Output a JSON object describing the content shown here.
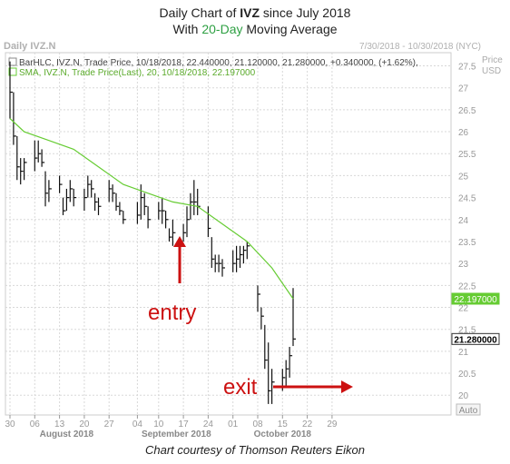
{
  "title": {
    "line1_prefix": "Daily Chart of ",
    "line1_ticker": "IVZ",
    "line1_suffix": " since July 2018",
    "line2_prefix": "With ",
    "line2_highlight": "20-Day",
    "line2_suffix": " Moving Average"
  },
  "header": {
    "chart_name": "Daily IVZ.N",
    "date_range": "7/30/2018 - 10/30/2018 (NYC)",
    "legend_bar": "BarHLC, IVZ.N, Trade Price, 10/18/2018, 22.440000, 21.120000, 21.280000, +0.340000, (+1.62%),",
    "legend_sma": "SMA, IVZ.N, Trade Price(Last), 20, 10/18/2018, 22.197000",
    "price_label": "Price",
    "currency_label": "USD"
  },
  "annotations": {
    "entry": "entry",
    "exit": "exit"
  },
  "auto_label": "Auto",
  "credit": "Chart courtesy of Thomson Reuters Eikon",
  "colors": {
    "bars": "#111111",
    "sma": "#66cc33",
    "arrows": "#cc1111",
    "grid": "#d8d8d8",
    "axis_text": "#999999"
  },
  "chart_data": {
    "type": "line",
    "title": "Daily Chart of IVZ since July 2018",
    "subtitle": "With 20-Day Moving Average",
    "ylabel": "Price USD",
    "ylim": [
      19.55,
      27.8
    ],
    "y_ticks": [
      20,
      20.5,
      21,
      21.5,
      22,
      22.5,
      23,
      23.5,
      24,
      24.5,
      25,
      25.5,
      26,
      26.5,
      27,
      27.5
    ],
    "x_ticks": [
      "30",
      "06",
      "13",
      "20",
      "27",
      "04",
      "10",
      "17",
      "24",
      "01",
      "08",
      "15",
      "22",
      "29"
    ],
    "x_tick_dates": [
      "2018-07-30",
      "2018-08-06",
      "2018-08-13",
      "2018-08-20",
      "2018-08-27",
      "2018-09-04",
      "2018-09-10",
      "2018-09-17",
      "2018-09-24",
      "2018-10-01",
      "2018-10-08",
      "2018-10-15",
      "2018-10-22",
      "2018-10-29"
    ],
    "month_labels": [
      "August 2018",
      "September 2018",
      "October 2018"
    ],
    "grid": true,
    "series": [
      {
        "name": "BarHLC, IVZ.N",
        "kind": "hlc",
        "bars": [
          {
            "date": "2018-07-30",
            "high": 27.6,
            "low": 26.3,
            "close": 26.9
          },
          {
            "date": "2018-07-31",
            "high": 26.9,
            "low": 25.7,
            "close": 25.9
          },
          {
            "date": "2018-08-01",
            "high": 25.9,
            "low": 24.9,
            "close": 25.2
          },
          {
            "date": "2018-08-02",
            "high": 25.4,
            "low": 24.8,
            "close": 25.1
          },
          {
            "date": "2018-08-03",
            "high": 25.4,
            "low": 24.9,
            "close": 25.3
          },
          {
            "date": "2018-08-06",
            "high": 25.8,
            "low": 25.1,
            "close": 25.4
          },
          {
            "date": "2018-08-07",
            "high": 25.8,
            "low": 25.3,
            "close": 25.5
          },
          {
            "date": "2018-08-08",
            "high": 25.6,
            "low": 25.2,
            "close": 25.3
          },
          {
            "date": "2018-08-09",
            "high": 25.1,
            "low": 24.3,
            "close": 24.6
          },
          {
            "date": "2018-08-10",
            "high": 24.9,
            "low": 24.4,
            "close": 24.7
          },
          {
            "date": "2018-08-13",
            "high": 25.0,
            "low": 24.6,
            "close": 24.8
          },
          {
            "date": "2018-08-14",
            "high": 24.5,
            "low": 24.1,
            "close": 24.2
          },
          {
            "date": "2018-08-15",
            "high": 24.7,
            "low": 24.2,
            "close": 24.5
          },
          {
            "date": "2018-08-16",
            "high": 24.9,
            "low": 24.4,
            "close": 24.7
          },
          {
            "date": "2018-08-17",
            "high": 24.7,
            "low": 24.3,
            "close": 24.5
          },
          {
            "date": "2018-08-20",
            "high": 24.7,
            "low": 24.2,
            "close": 24.5
          },
          {
            "date": "2018-08-21",
            "high": 25.0,
            "low": 24.5,
            "close": 24.8
          },
          {
            "date": "2018-08-22",
            "high": 24.9,
            "low": 24.5,
            "close": 24.7
          },
          {
            "date": "2018-08-23",
            "high": 24.6,
            "low": 24.2,
            "close": 24.4
          },
          {
            "date": "2018-08-24",
            "high": 24.5,
            "low": 24.1,
            "close": 24.3
          },
          {
            "date": "2018-08-27",
            "high": 24.9,
            "low": 24.4,
            "close": 24.7
          },
          {
            "date": "2018-08-28",
            "high": 24.8,
            "low": 24.4,
            "close": 24.6
          },
          {
            "date": "2018-08-29",
            "high": 24.6,
            "low": 24.2,
            "close": 24.3
          },
          {
            "date": "2018-08-30",
            "high": 24.4,
            "low": 24.1,
            "close": 24.2
          },
          {
            "date": "2018-08-31",
            "high": 24.2,
            "low": 23.9,
            "close": 24.0
          },
          {
            "date": "2018-09-04",
            "high": 24.4,
            "low": 23.9,
            "close": 24.1
          },
          {
            "date": "2018-09-05",
            "high": 24.8,
            "low": 24.0,
            "close": 24.5
          },
          {
            "date": "2018-09-06",
            "high": 24.6,
            "low": 24.1,
            "close": 24.3
          },
          {
            "date": "2018-09-07",
            "high": 24.3,
            "low": 23.8,
            "close": 24.0
          },
          {
            "date": "2018-09-10",
            "high": 24.4,
            "low": 24.0,
            "close": 24.2
          },
          {
            "date": "2018-09-11",
            "high": 24.5,
            "low": 23.9,
            "close": 24.2
          },
          {
            "date": "2018-09-12",
            "high": 24.2,
            "low": 23.8,
            "close": 24.0
          },
          {
            "date": "2018-09-13",
            "high": 23.8,
            "low": 23.5,
            "close": 23.6
          },
          {
            "date": "2018-09-14",
            "high": 24.0,
            "low": 23.4,
            "close": 23.7
          },
          {
            "date": "2018-09-17",
            "high": 23.9,
            "low": 23.5,
            "close": 23.7
          },
          {
            "date": "2018-09-18",
            "high": 24.3,
            "low": 23.6,
            "close": 24.0
          },
          {
            "date": "2018-09-19",
            "high": 24.6,
            "low": 24.0,
            "close": 24.4
          },
          {
            "date": "2018-09-20",
            "high": 24.9,
            "low": 24.1,
            "close": 24.4
          },
          {
            "date": "2018-09-21",
            "high": 24.7,
            "low": 24.1,
            "close": 24.3
          },
          {
            "date": "2018-09-24",
            "high": 24.3,
            "low": 23.6,
            "close": 23.8
          },
          {
            "date": "2018-09-25",
            "high": 23.6,
            "low": 22.9,
            "close": 23.1
          },
          {
            "date": "2018-09-26",
            "high": 23.2,
            "low": 22.8,
            "close": 23.0
          },
          {
            "date": "2018-09-27",
            "high": 23.2,
            "low": 22.8,
            "close": 23.0
          },
          {
            "date": "2018-09-28",
            "high": 23.1,
            "low": 22.7,
            "close": 22.9
          },
          {
            "date": "2018-10-01",
            "high": 23.3,
            "low": 22.8,
            "close": 23.0
          },
          {
            "date": "2018-10-02",
            "high": 23.4,
            "low": 22.8,
            "close": 23.1
          },
          {
            "date": "2018-10-03",
            "high": 23.4,
            "low": 22.9,
            "close": 23.2
          },
          {
            "date": "2018-10-04",
            "high": 23.4,
            "low": 23.0,
            "close": 23.3
          },
          {
            "date": "2018-10-05",
            "high": 23.5,
            "low": 23.1,
            "close": 23.4
          },
          {
            "date": "2018-10-08",
            "high": 22.5,
            "low": 21.9,
            "close": 22.3
          },
          {
            "date": "2018-10-09",
            "high": 22.0,
            "low": 21.5,
            "close": 21.8
          },
          {
            "date": "2018-10-10",
            "high": 21.6,
            "low": 20.6,
            "close": 20.8
          },
          {
            "date": "2018-10-11",
            "high": 21.2,
            "low": 19.8,
            "close": 20.1
          },
          {
            "date": "2018-10-12",
            "high": 20.6,
            "low": 19.8,
            "close": 20.3
          },
          {
            "date": "2018-10-15",
            "high": 20.6,
            "low": 20.1,
            "close": 20.4
          },
          {
            "date": "2018-10-16",
            "high": 20.8,
            "low": 20.2,
            "close": 20.6
          },
          {
            "date": "2018-10-17",
            "high": 21.1,
            "low": 20.4,
            "close": 20.9
          },
          {
            "date": "2018-10-18",
            "high": 22.44,
            "low": 21.12,
            "close": 21.28
          }
        ]
      },
      {
        "name": "SMA, IVZ.N, Trade Price(Last), 20",
        "kind": "line",
        "points": [
          {
            "date": "2018-07-30",
            "value": 26.3
          },
          {
            "date": "2018-08-03",
            "value": 26.0
          },
          {
            "date": "2018-08-10",
            "value": 25.8
          },
          {
            "date": "2018-08-17",
            "value": 25.6
          },
          {
            "date": "2018-08-24",
            "value": 25.2
          },
          {
            "date": "2018-08-31",
            "value": 24.8
          },
          {
            "date": "2018-09-07",
            "value": 24.6
          },
          {
            "date": "2018-09-14",
            "value": 24.4
          },
          {
            "date": "2018-09-21",
            "value": 24.3
          },
          {
            "date": "2018-09-28",
            "value": 23.9
          },
          {
            "date": "2018-10-05",
            "value": 23.5
          },
          {
            "date": "2018-10-12",
            "value": 22.9
          },
          {
            "date": "2018-10-18",
            "value": 22.197
          }
        ]
      }
    ],
    "price_tags": [
      {
        "value": 22.197,
        "label": "22.197000",
        "style": "sma"
      },
      {
        "value": 21.28,
        "label": "21.280000",
        "style": "last"
      }
    ]
  }
}
